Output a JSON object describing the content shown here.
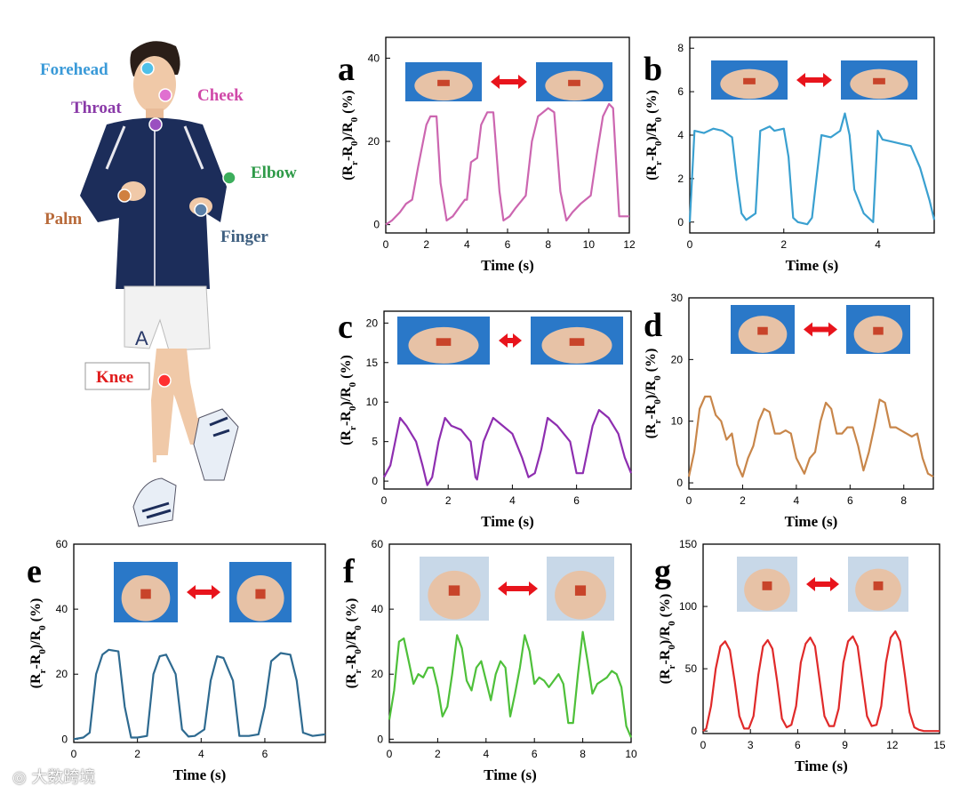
{
  "figure": {
    "body_labels": [
      {
        "text": "Forehead",
        "color": "#3a9ad8",
        "dot": "#4fc0e8"
      },
      {
        "text": "Cheek",
        "color": "#d048a8",
        "dot": "#e070d0"
      },
      {
        "text": "Throat",
        "color": "#8a3aa8",
        "dot": "#9a50c0"
      },
      {
        "text": "Elbow",
        "color": "#2e9a48",
        "dot": "#3cae5c"
      },
      {
        "text": "Palm",
        "color": "#b86a3a",
        "dot": "#d08040"
      },
      {
        "text": "Finger",
        "color": "#3e5f80",
        "dot": "#5a7fa8"
      },
      {
        "text": "Knee",
        "color": "#e01c1c",
        "dot": "#ff3030"
      }
    ],
    "watermark": "大数跨境"
  },
  "chart_data": [
    {
      "panel": "a",
      "type": "line",
      "color": "#cc66b0",
      "xlabel": "Time (s)",
      "ylabel": "(Rr-R0)/R0 (%)",
      "xlim": [
        0,
        12
      ],
      "ylim": [
        -2,
        45
      ],
      "xticks": [
        0,
        2,
        4,
        6,
        8,
        10,
        12
      ],
      "yticks": [
        0,
        20,
        40
      ],
      "x": [
        0,
        0.3,
        0.7,
        1.0,
        1.3,
        1.6,
        2.0,
        2.2,
        2.5,
        2.7,
        3.0,
        3.3,
        3.6,
        3.9,
        4.0,
        4.2,
        4.5,
        4.7,
        5.0,
        5.3,
        5.6,
        5.8,
        6.1,
        6.4,
        6.9,
        7.2,
        7.5,
        8.0,
        8.3,
        8.6,
        8.9,
        9.2,
        9.6,
        10.1,
        10.4,
        10.7,
        11.0,
        11.2,
        11.5,
        12
      ],
      "y": [
        0,
        1,
        3,
        5,
        6,
        14,
        24,
        26,
        26,
        10,
        1,
        2,
        4,
        6,
        6,
        15,
        16,
        24,
        27,
        27,
        8,
        1,
        2,
        4,
        7,
        20,
        26,
        28,
        27,
        8,
        1,
        3,
        5,
        7,
        17,
        26,
        29,
        28,
        2,
        2
      ]
    },
    {
      "panel": "b",
      "type": "line",
      "color": "#3aa0d0",
      "xlabel": "Time (s)",
      "ylabel": "(Rr-R0)/R0 (%)",
      "xlim": [
        0,
        5.2
      ],
      "ylim": [
        -0.5,
        8.5
      ],
      "xticks": [
        0,
        2,
        4
      ],
      "yticks": [
        0,
        2,
        4,
        6,
        8
      ],
      "x": [
        0,
        0.1,
        0.3,
        0.5,
        0.7,
        0.9,
        1.0,
        1.1,
        1.2,
        1.4,
        1.5,
        1.7,
        1.8,
        2.0,
        2.1,
        2.2,
        2.3,
        2.5,
        2.6,
        2.8,
        3.0,
        3.2,
        3.3,
        3.4,
        3.5,
        3.7,
        3.9,
        4.0,
        4.1,
        4.3,
        4.5,
        4.7,
        4.9,
        5.1,
        5.2
      ],
      "y": [
        0,
        4.2,
        4.1,
        4.3,
        4.2,
        3.9,
        2.0,
        0.4,
        0.1,
        0.4,
        4.2,
        4.4,
        4.2,
        4.3,
        3.0,
        0.2,
        0,
        -0.1,
        0.2,
        4.0,
        3.9,
        4.2,
        5.0,
        4.0,
        1.5,
        0.4,
        0,
        4.2,
        3.8,
        3.7,
        3.6,
        3.5,
        2.5,
        1.0,
        0.1
      ]
    },
    {
      "panel": "c",
      "type": "line",
      "color": "#8e2eb0",
      "xlabel": "Time (s)",
      "ylabel": "(Rr-R0)/R0 (%)",
      "xlim": [
        0,
        7.7
      ],
      "ylim": [
        -1,
        21.5
      ],
      "xticks": [
        0,
        2,
        4,
        6
      ],
      "yticks": [
        0,
        5,
        10,
        15,
        20
      ],
      "x": [
        0,
        0.2,
        0.4,
        0.5,
        0.7,
        1.0,
        1.2,
        1.35,
        1.5,
        1.7,
        1.9,
        2.1,
        2.4,
        2.7,
        2.85,
        2.9,
        3.1,
        3.4,
        3.7,
        4.0,
        4.3,
        4.5,
        4.7,
        4.9,
        5.1,
        5.4,
        5.8,
        6.0,
        6.2,
        6.5,
        6.7,
        7.0,
        7.3,
        7.5,
        7.7
      ],
      "y": [
        0.5,
        2,
        6,
        8,
        7,
        5,
        2,
        -0.5,
        0.5,
        5,
        8,
        7,
        6.5,
        5,
        0.5,
        0.2,
        5,
        8,
        7,
        6,
        3,
        0.5,
        1,
        4,
        8,
        7,
        5,
        1,
        1,
        7,
        9,
        8,
        6,
        3,
        1
      ]
    },
    {
      "panel": "d",
      "type": "line",
      "color": "#c8864a",
      "xlabel": "Time (s)",
      "ylabel": "(Rr-R0)/R0 (%)",
      "xlim": [
        0,
        9.1
      ],
      "ylim": [
        -1,
        30
      ],
      "xticks": [
        0,
        2,
        4,
        6,
        8
      ],
      "yticks": [
        0,
        10,
        20,
        30
      ],
      "x": [
        0,
        0.2,
        0.4,
        0.6,
        0.8,
        1.0,
        1.2,
        1.4,
        1.6,
        1.8,
        2.0,
        2.2,
        2.4,
        2.6,
        2.8,
        3.0,
        3.2,
        3.4,
        3.6,
        3.8,
        4.0,
        4.3,
        4.5,
        4.7,
        4.9,
        5.1,
        5.3,
        5.5,
        5.7,
        5.9,
        6.1,
        6.3,
        6.5,
        6.7,
        6.9,
        7.1,
        7.3,
        7.5,
        7.7,
        7.9,
        8.1,
        8.3,
        8.5,
        8.7,
        8.9,
        9.1
      ],
      "y": [
        1,
        5,
        12,
        14,
        14,
        11,
        10,
        7,
        8,
        3,
        1,
        4,
        6,
        10,
        12,
        11.5,
        8,
        8,
        8.5,
        8,
        4,
        1.5,
        4,
        5,
        10,
        13,
        12,
        8,
        8,
        9,
        9,
        6,
        2,
        5,
        9,
        13.5,
        13,
        9,
        9,
        8.5,
        8,
        7.5,
        8,
        4,
        1.5,
        1
      ]
    },
    {
      "panel": "e",
      "type": "line",
      "color": "#2e6a90",
      "xlabel": "Time (s)",
      "ylabel": "(Rr-R0)/R0 (%)",
      "xlim": [
        0,
        7.9
      ],
      "ylim": [
        -1,
        60
      ],
      "xticks": [
        0,
        2,
        4,
        6
      ],
      "yticks": [
        0,
        20,
        40,
        60
      ],
      "x": [
        0,
        0.3,
        0.5,
        0.7,
        0.9,
        1.1,
        1.4,
        1.6,
        1.8,
        2.0,
        2.3,
        2.5,
        2.7,
        2.9,
        3.2,
        3.4,
        3.6,
        3.8,
        4.1,
        4.3,
        4.5,
        4.7,
        5.0,
        5.2,
        5.5,
        5.8,
        6.0,
        6.2,
        6.5,
        6.8,
        7.0,
        7.2,
        7.5,
        7.9
      ],
      "y": [
        0,
        0.5,
        2,
        20,
        26,
        27.5,
        27,
        10,
        0.5,
        0.5,
        1,
        20,
        25.5,
        26,
        20,
        3,
        0.8,
        1,
        3,
        18,
        25.5,
        25,
        18,
        1,
        1,
        1.5,
        10,
        24,
        26.5,
        26,
        18,
        2,
        1,
        1.5
      ]
    },
    {
      "panel": "f",
      "type": "line",
      "color": "#4ec03a",
      "xlabel": "Time (s)",
      "ylabel": "(Rr-R0)/R0 (%)",
      "xlim": [
        0,
        10
      ],
      "ylim": [
        -1,
        60
      ],
      "xticks": [
        0,
        2,
        4,
        6,
        8,
        10
      ],
      "yticks": [
        0,
        20,
        40,
        60
      ],
      "x": [
        0,
        0.2,
        0.4,
        0.6,
        0.8,
        1.0,
        1.2,
        1.4,
        1.6,
        1.8,
        2.0,
        2.2,
        2.4,
        2.6,
        2.8,
        3.0,
        3.2,
        3.4,
        3.6,
        3.8,
        4.0,
        4.2,
        4.4,
        4.6,
        4.8,
        5.0,
        5.2,
        5.4,
        5.6,
        5.8,
        6.0,
        6.2,
        6.4,
        6.6,
        6.8,
        7.0,
        7.2,
        7.4,
        7.6,
        7.8,
        8.0,
        8.2,
        8.4,
        8.6,
        8.8,
        9.0,
        9.2,
        9.4,
        9.6,
        9.8,
        10
      ],
      "y": [
        6,
        15,
        30,
        31,
        24,
        17,
        20,
        19,
        22,
        22,
        16,
        7,
        10,
        20,
        32,
        28,
        18,
        15,
        22,
        24,
        18,
        12,
        20,
        24,
        22,
        7,
        14,
        22,
        32,
        27,
        17,
        19,
        18,
        16,
        18,
        20,
        17,
        5,
        5,
        20,
        33,
        24,
        14,
        17,
        18,
        19,
        21,
        20,
        16,
        4,
        0.5
      ]
    },
    {
      "panel": "g",
      "type": "line",
      "color": "#e02a2a",
      "xlabel": "Time (s)",
      "ylabel": "(Rr-R0)/R0 (%)",
      "xlim": [
        0,
        15
      ],
      "ylim": [
        -2,
        150
      ],
      "xticks": [
        0,
        3,
        6,
        9,
        12,
        15
      ],
      "yticks": [
        0,
        50,
        100,
        150
      ],
      "x": [
        0,
        0.2,
        0.5,
        0.8,
        1.1,
        1.4,
        1.7,
        2.0,
        2.3,
        2.6,
        2.9,
        3.2,
        3.5,
        3.8,
        4.1,
        4.4,
        4.7,
        5.0,
        5.3,
        5.6,
        5.9,
        6.2,
        6.5,
        6.8,
        7.1,
        7.4,
        7.7,
        8.0,
        8.3,
        8.6,
        8.9,
        9.2,
        9.5,
        9.8,
        10.1,
        10.4,
        10.7,
        11.0,
        11.3,
        11.6,
        11.9,
        12.2,
        12.5,
        12.8,
        13.1,
        13.4,
        13.7,
        14.0,
        14.3,
        14.6,
        15
      ],
      "y": [
        0,
        2,
        20,
        50,
        68,
        72,
        65,
        40,
        12,
        2,
        2,
        12,
        45,
        68,
        73,
        66,
        40,
        10,
        3,
        5,
        20,
        55,
        70,
        75,
        68,
        40,
        12,
        4,
        4,
        18,
        55,
        72,
        76,
        68,
        40,
        12,
        4,
        5,
        20,
        55,
        75,
        80,
        72,
        45,
        15,
        3,
        1,
        0,
        0,
        0,
        0
      ]
    }
  ]
}
